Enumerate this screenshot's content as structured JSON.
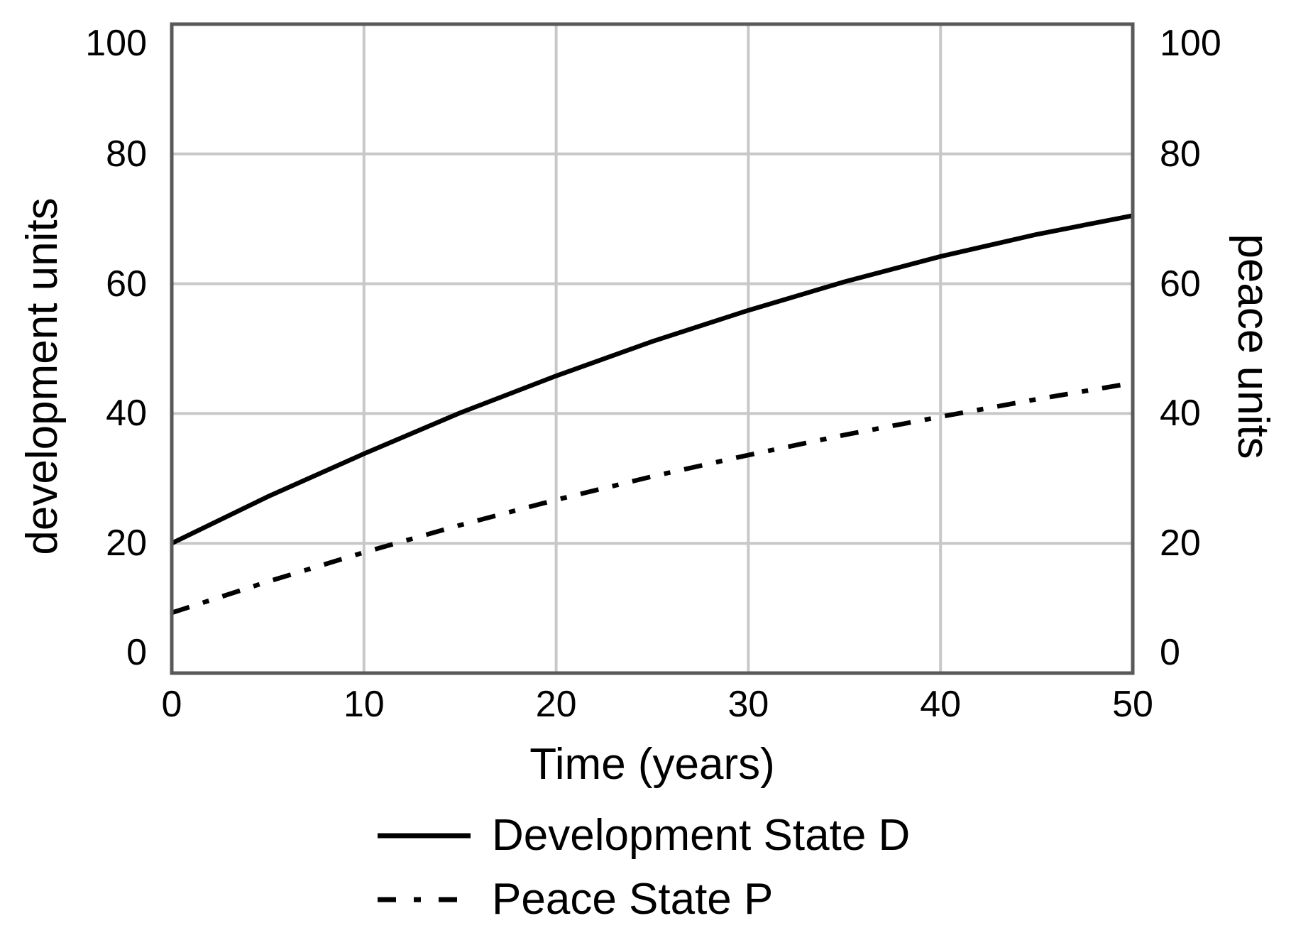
{
  "chart_data": {
    "type": "line",
    "title": "",
    "xlabel": "Time (years)",
    "ylabel_left": "development units",
    "ylabel_right": "peace units",
    "xlim": [
      0,
      50
    ],
    "ylim": [
      0,
      100
    ],
    "grid": true,
    "legend_position": "below",
    "x": [
      0,
      5,
      10,
      15,
      20,
      25,
      30,
      35,
      40,
      45,
      50
    ],
    "series": [
      {
        "name": "Development State D",
        "axis": "left",
        "style": "solid",
        "color": "#000000",
        "values": [
          20.0,
          27.2,
          33.8,
          40.1,
          45.8,
          51.1,
          55.9,
          60.3,
          64.2,
          67.6,
          70.5
        ]
      },
      {
        "name": "Peace State P",
        "axis": "right",
        "style": "dashdot",
        "color": "#000000",
        "values": [
          9.3,
          14.1,
          18.6,
          22.8,
          26.7,
          30.3,
          33.6,
          36.7,
          39.5,
          42.2,
          44.7
        ]
      }
    ]
  },
  "axes": {
    "x": {
      "title": "Time (years)",
      "ticks": [
        "0",
        "10",
        "20",
        "30",
        "40",
        "50"
      ]
    },
    "y_left": {
      "title": "development units",
      "ticks": [
        "100",
        "80",
        "60",
        "40",
        "20",
        "0"
      ]
    },
    "y_right": {
      "title": "peace units",
      "ticks": [
        "100",
        "80",
        "60",
        "40",
        "20",
        "0"
      ]
    }
  },
  "legend": {
    "items": [
      {
        "label": "Development State D",
        "style": "solid"
      },
      {
        "label": "Peace State P",
        "style": "dashdot"
      }
    ]
  },
  "colors": {
    "background": "#ffffff",
    "frame": "#595959",
    "gridline": "#c8c8c8",
    "line": "#000000",
    "text": "#000000"
  }
}
